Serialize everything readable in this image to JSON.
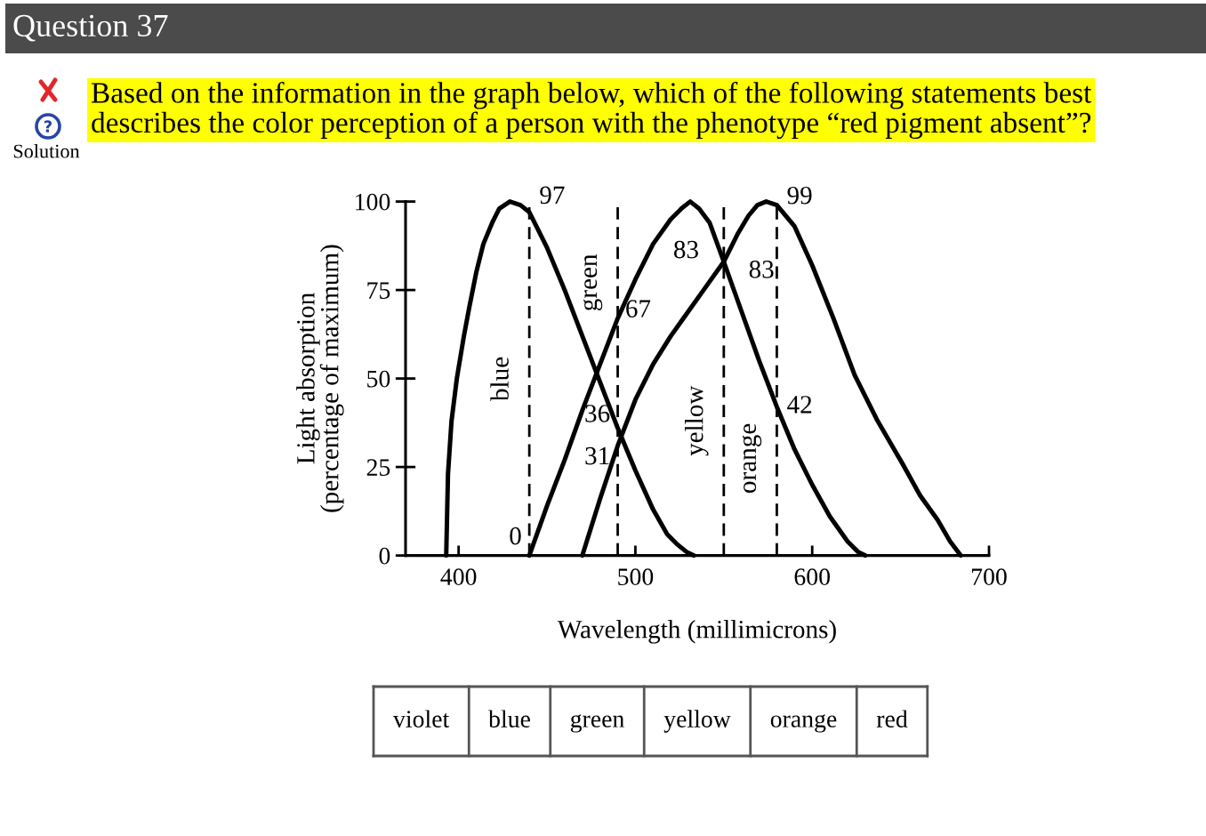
{
  "chart_data": [
    {
      "type": "line",
      "title": "Question 37",
      "subtitle": "Based on the information in the graph below, which of the following statements best\ndescribes the color perception of a person with the phenotype “red pigment absent”?",
      "xlabel": "Wavelength (millimicrons)",
      "ylabel": "Light absorption\n(percentage of maximum)",
      "series": [
        {
          "color": "#000000",
          "x": [
            393,
            394,
            396,
            399,
            403,
            406,
            410,
            414,
            419,
            423,
            429,
            435,
            440,
            450,
            460,
            470,
            480,
            490,
            500,
            510,
            518,
            524,
            529,
            533
          ],
          "values": [
            0,
            23,
            38,
            50,
            62,
            70,
            80,
            88,
            94,
            98,
            100,
            99,
            97,
            87,
            75,
            62,
            49,
            36,
            24,
            13,
            6,
            3,
            1,
            0
          ]
        },
        {
          "color": "#000000",
          "x": [
            440,
            450,
            460,
            470,
            480,
            490,
            500,
            510,
            520,
            526,
            531,
            536,
            542,
            550,
            560,
            570,
            580,
            590,
            600,
            610,
            620,
            626,
            630
          ],
          "values": [
            0,
            14,
            27,
            41,
            54,
            67,
            78,
            88,
            95,
            98,
            100,
            98,
            94,
            83,
            69,
            55,
            42,
            30,
            20,
            11,
            4,
            1,
            0
          ]
        },
        {
          "color": "#000000",
          "x": [
            470,
            480,
            490,
            500,
            510,
            520,
            530,
            540,
            550,
            558,
            564,
            569,
            574,
            580,
            590,
            600,
            612,
            624,
            637,
            651,
            661,
            671,
            678,
            684
          ],
          "values": [
            0,
            16,
            31,
            44,
            54,
            62,
            69,
            76,
            83,
            91,
            96,
            99,
            100,
            99,
            93,
            82,
            67,
            51,
            38,
            26,
            17,
            10,
            4,
            0
          ]
        }
      ],
      "xlim": [
        370,
        700
      ],
      "xticks": [
        400,
        500,
        600,
        700
      ],
      "ylim": [
        0,
        100
      ],
      "yticks": [
        0,
        25,
        50,
        75,
        100
      ],
      "ref_lines": [
        {
          "axis": "x",
          "value": 440,
          "label": "blue",
          "color": "#000000",
          "line_style": "dashed"
        },
        {
          "axis": "x",
          "value": 490,
          "label": "green",
          "color": "#000000",
          "line_style": "dashed"
        },
        {
          "axis": "x",
          "value": 550,
          "label": "yellow",
          "color": "#000000",
          "line_style": "dashed"
        },
        {
          "axis": "x",
          "value": 580,
          "label": "orange",
          "color": "#000000",
          "line_style": "dashed"
        }
      ],
      "annotations": [
        "Solution",
        {
          "text": "97",
          "x": 440,
          "y": 97
        },
        {
          "text": "0",
          "x": 440,
          "y": 0
        },
        {
          "text": "67",
          "x": 490,
          "y": 67
        },
        {
          "text": "36",
          "x": 490,
          "y": 36
        },
        {
          "text": "31",
          "x": 490,
          "y": 31
        },
        {
          "text": "83",
          "x": 550,
          "y": 83
        },
        {
          "text": "83",
          "x": 550,
          "y": 83
        },
        {
          "text": "99",
          "x": 580,
          "y": 99
        },
        {
          "text": "42",
          "x": 580,
          "y": 42
        }
      ]
    },
    {
      "type": "other",
      "annotations": [
        "violet",
        "blue",
        "green",
        "yellow",
        "orange",
        "red"
      ]
    }
  ]
}
